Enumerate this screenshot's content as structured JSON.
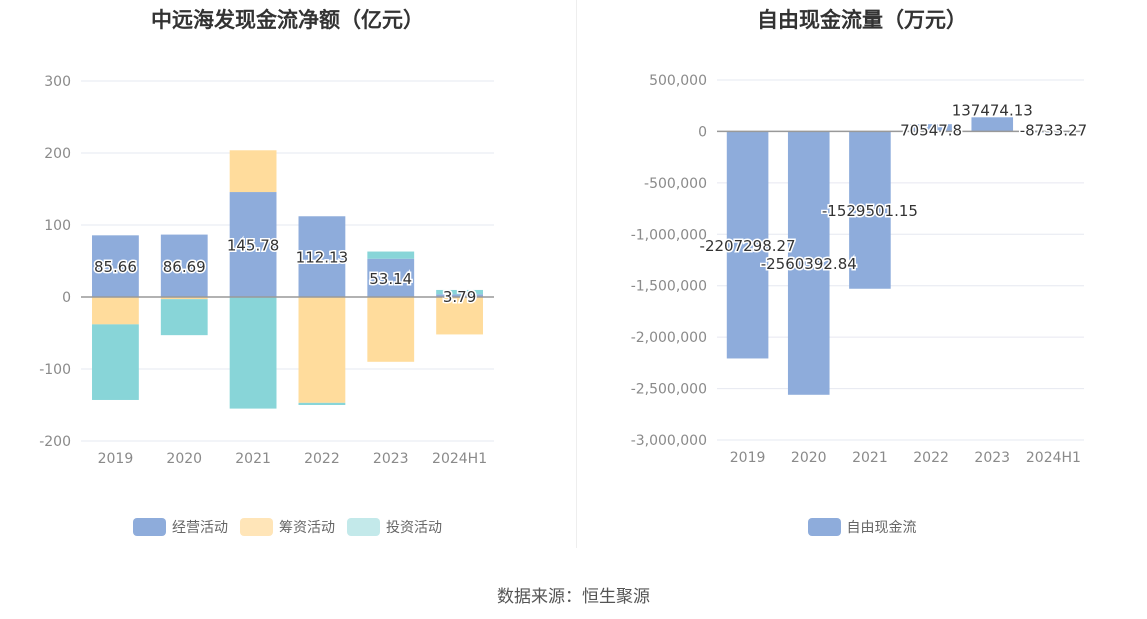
{
  "source_note": "数据来源：恒生聚源",
  "chart_data": [
    {
      "type": "bar",
      "stacked": true,
      "title": "中远海发现金流净额（亿元）",
      "categories": [
        "2019",
        "2020",
        "2021",
        "2022",
        "2023",
        "2024H1"
      ],
      "ylim": [
        -200,
        300
      ],
      "yticks": [
        "300",
        "200",
        "100",
        "0",
        "-100",
        "-200"
      ],
      "grid": true,
      "legend_position": "bottom",
      "series": [
        {
          "name": "经营活动",
          "color": "#8eacdb",
          "values": [
            85.66,
            86.69,
            145.78,
            112.13,
            53.14,
            3.79
          ]
        },
        {
          "name": "筹资活动",
          "color": "#ffdc9c",
          "values": [
            -38,
            -3,
            58,
            -147,
            -90,
            -52
          ]
        },
        {
          "name": "投资活动",
          "color": "#88d5d8",
          "values": [
            -105,
            -50,
            -155,
            -3,
            10,
            6
          ]
        }
      ],
      "data_labels": [
        "85.66",
        "86.69",
        "145.78",
        "112.13",
        "53.14",
        "3.79"
      ]
    },
    {
      "type": "bar",
      "title": "自由现金流量（万元）",
      "categories": [
        "2019",
        "2020",
        "2021",
        "2022",
        "2023",
        "2024H1"
      ],
      "ylim": [
        -3000000,
        500000
      ],
      "yticks": [
        "500,000",
        "0",
        "-500,000",
        "-1,000,000",
        "-1,500,000",
        "-2,000,000",
        "-2,500,000",
        "-3,000,000"
      ],
      "grid": true,
      "legend_position": "bottom",
      "series": [
        {
          "name": "自由现金流",
          "color": "#8eacdb",
          "values": [
            -2207298.27,
            -2560392.84,
            -1529501.15,
            70547.8,
            137474.13,
            -8733.27
          ]
        }
      ],
      "data_labels": [
        "-2207298.27",
        "-2560392.84",
        "-1529501.15",
        "70547.8",
        "137474.13",
        "-8733.27"
      ]
    }
  ]
}
